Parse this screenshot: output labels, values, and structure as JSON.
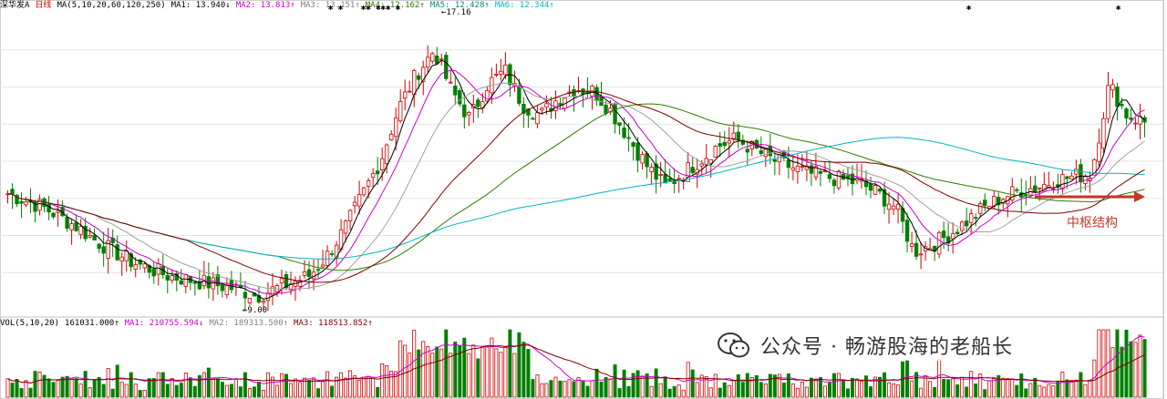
{
  "header": {
    "stock_name": "深华发A",
    "period": "日线",
    "ma_params": "MA(5,10,20,60,120,250)",
    "ma1": "MA1: 13.940↓",
    "ma2": "MA2: 13.813↑",
    "ma3": "MA3: 13.151↑",
    "ma4": "MA4: 12.162↑",
    "ma5": "MA5: 12.428↑",
    "ma6": "MA6: 12.344↑"
  },
  "volume_header": {
    "vol_params": "VOL(5,10,20)",
    "vol": "161031.000↑",
    "ma1": "MA1: 210755.594↓",
    "ma2": "MA2: 189313.500↑",
    "ma3": "MA3: 118513.852↑"
  },
  "labels": {
    "high_price": "17.16",
    "low_price": "9.00",
    "annotation": "中枢结构"
  },
  "watermark": {
    "text": "公众号 · 畅游股海的老船长"
  },
  "colors": {
    "up": "#d40000",
    "down": "#008000",
    "ma1": "#000000",
    "ma2": "#cc00cc",
    "ma3": "#a0a0a0",
    "ma4": "#2e7d00",
    "ma5": "#00b4c8",
    "ma6": "#800000",
    "annotation": "#c0392b"
  },
  "chart_data": {
    "type": "candlestick",
    "title": "深华发A 日线",
    "indicators": [
      "MA(5,10,20,60,120,250)",
      "VOL(5,10,20)"
    ],
    "price_high": 17.16,
    "price_low": 9.0,
    "ma_values": {
      "MA1": 13.94,
      "MA2": 13.813,
      "MA3": 13.151,
      "MA4": 12.162,
      "MA5": 12.428,
      "MA6": 12.344
    },
    "volume_values": {
      "VOL": 161031.0,
      "MA1": 210755.594,
      "MA2": 189313.5,
      "MA3": 118513.852
    },
    "close_path": [
      12.0,
      11.8,
      11.6,
      11.3,
      11.0,
      10.6,
      10.3,
      10.0,
      9.8,
      9.6,
      9.5,
      9.4,
      9.3,
      9.2,
      9.0,
      9.2,
      9.4,
      9.6,
      10.2,
      11.0,
      12.0,
      13.0,
      14.5,
      15.5,
      16.2,
      15.0,
      14.2,
      15.2,
      15.6,
      14.6,
      14.3,
      14.8,
      15.1,
      15.0,
      14.4,
      13.6,
      12.8,
      12.2,
      12.6,
      13.0,
      13.4,
      13.6,
      13.3,
      13.0,
      12.8,
      12.6,
      12.5,
      12.4,
      12.3,
      12.0,
      11.6,
      10.3,
      10.5,
      10.8,
      11.2,
      11.6,
      11.9,
      12.1,
      12.2,
      12.4,
      12.5,
      12.6,
      15.2,
      14.3,
      14.1
    ],
    "annotation": "中枢结构"
  }
}
